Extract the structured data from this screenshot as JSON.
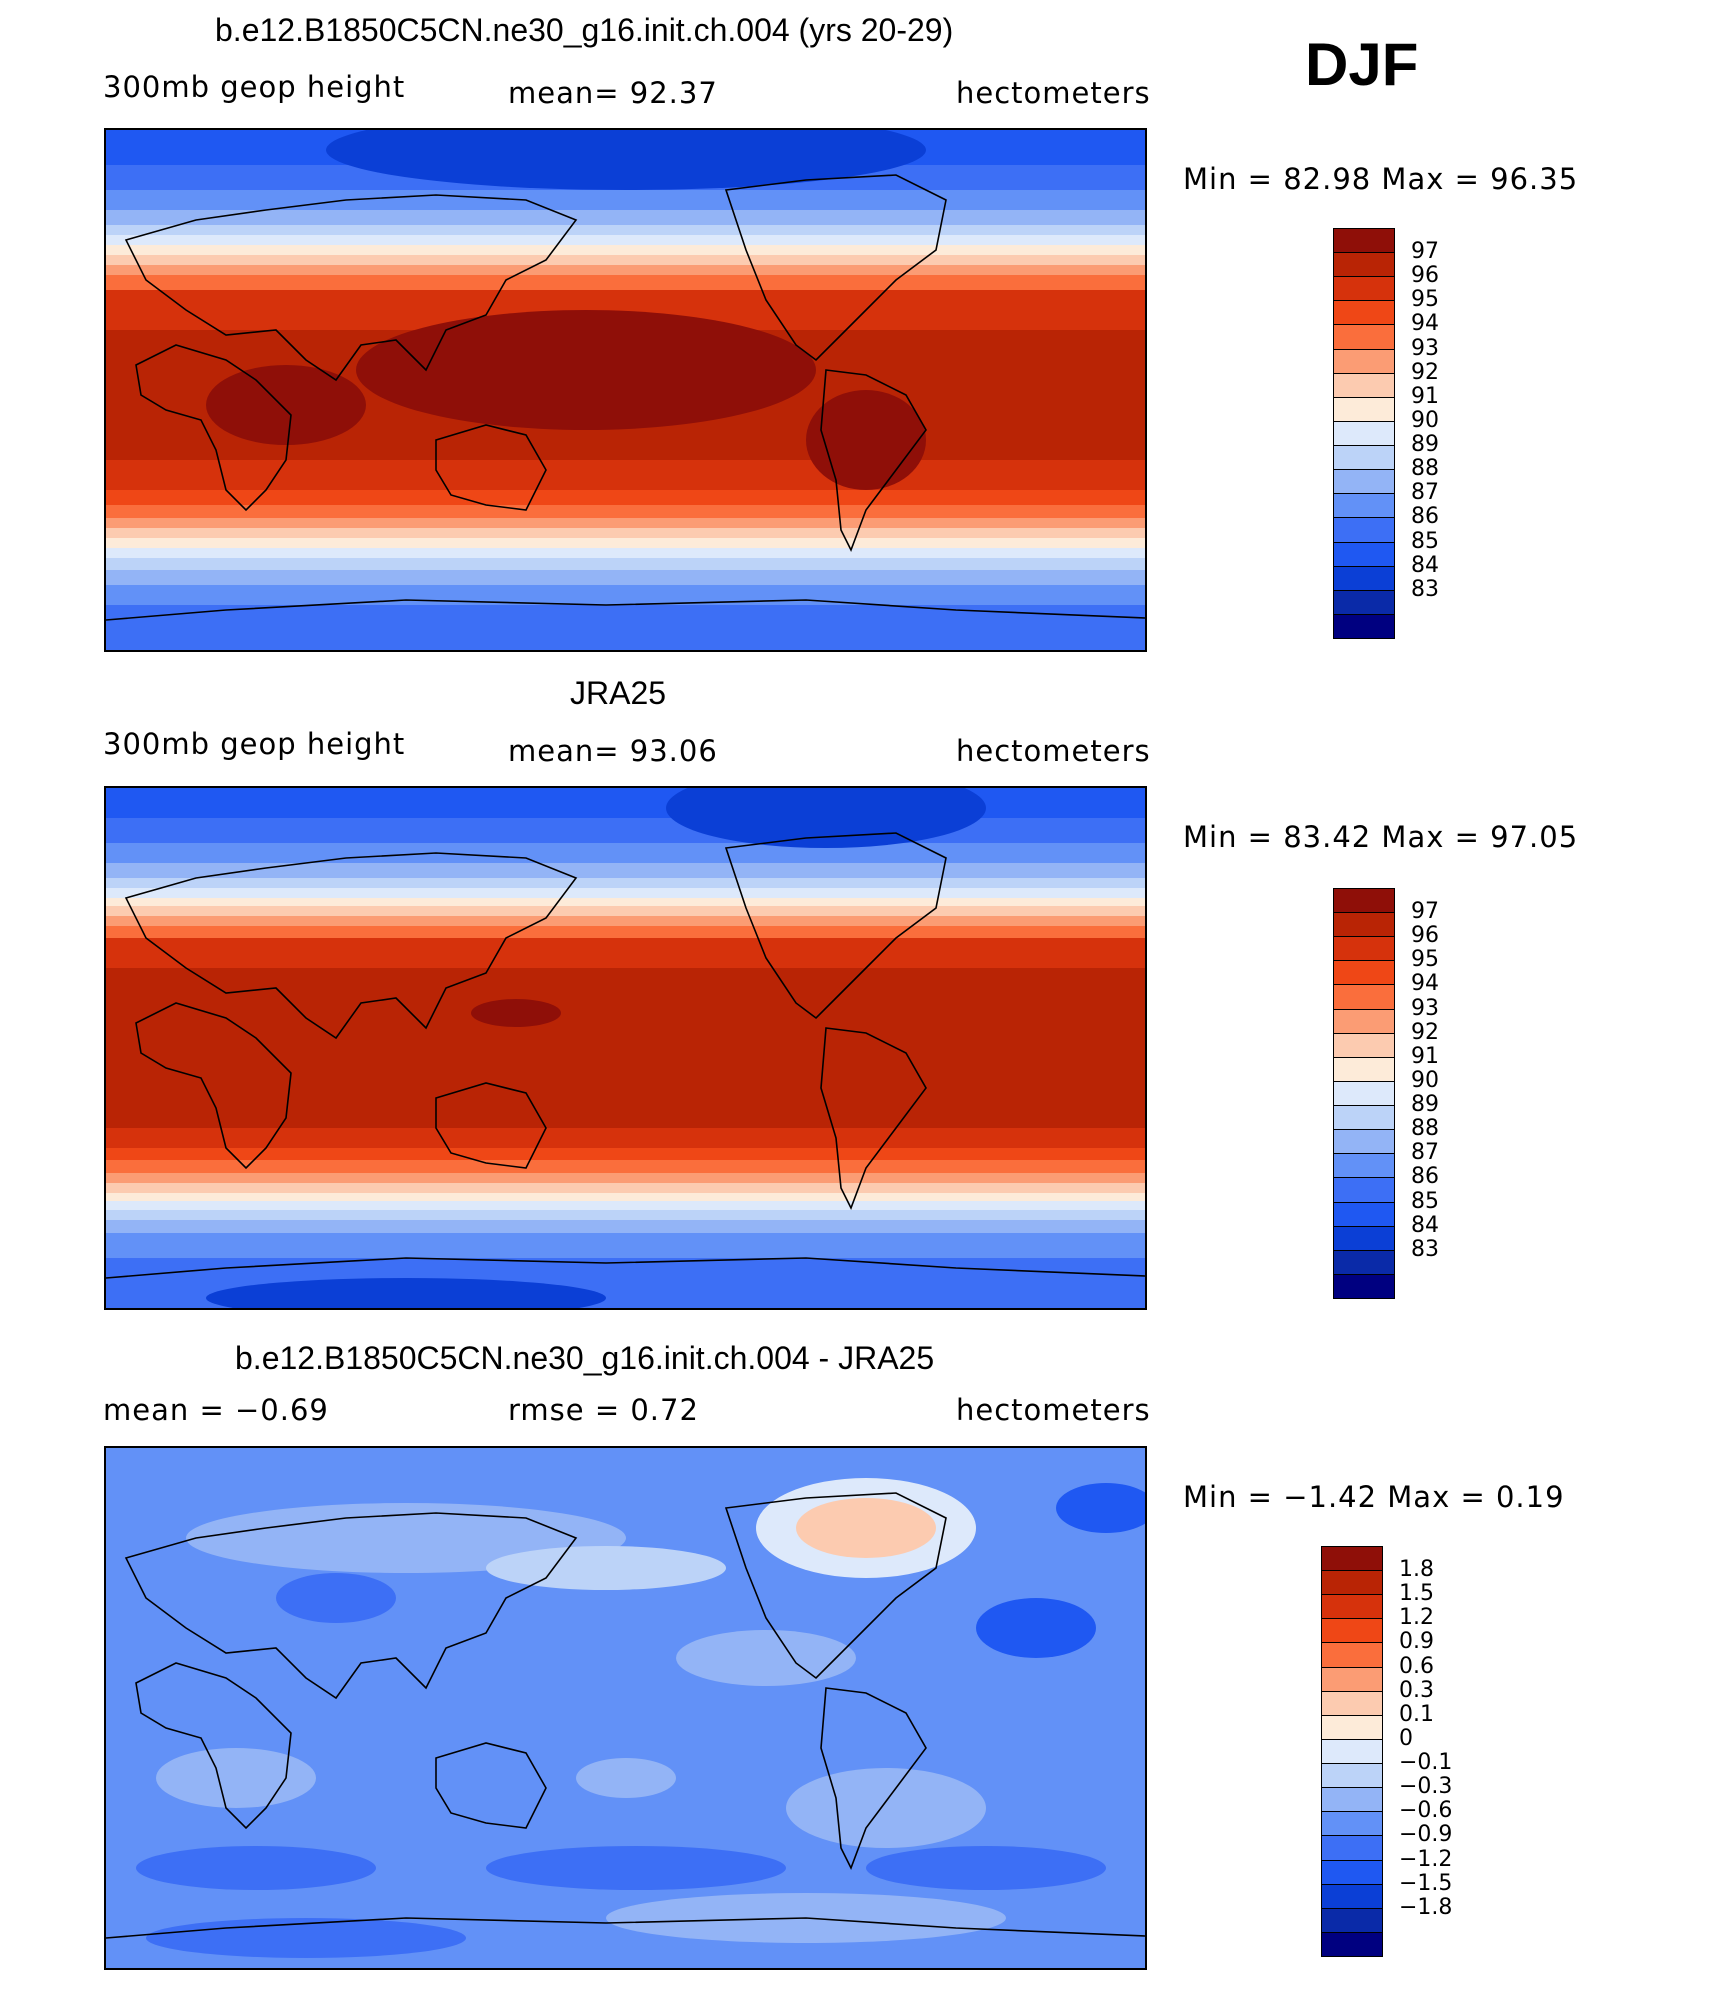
{
  "season": "DJF",
  "colors": {
    "levels_red": [
      "#000080",
      "#0a2aa8",
      "#0b3fd6",
      "#1f58f2",
      "#3d6ff5",
      "#6291f7",
      "#93b4f6",
      "#bcd3f8",
      "#dde9fb",
      "#fdebd9",
      "#fccbb0",
      "#fb9c74",
      "#fa6e3c",
      "#ef4716",
      "#d6320c",
      "#b92405",
      "#8f0f08"
    ],
    "diff": [
      "#000080",
      "#0a2aa8",
      "#0b3fd6",
      "#1f58f2",
      "#3d6ff5",
      "#6291f7",
      "#93b4f6",
      "#bcd3f8",
      "#dde9fb",
      "#fdebd9",
      "#fccbb0",
      "#fb9c74",
      "#fa6e3c",
      "#ef4716",
      "#d6320c",
      "#b92405",
      "#8f0f08"
    ]
  },
  "panels": [
    {
      "title": "b.e12.B1850C5CN.ne30_g16.init.ch.004 (yrs 20-29)",
      "left_text": "300mb geop height",
      "center_text": "mean=  92.37",
      "right_text": "hectometers",
      "minmax": "Min =   82.98 Max =   96.35",
      "colorbar_labels": [
        "97",
        "96",
        "95",
        "94",
        "93",
        "92",
        "91",
        "90",
        "89",
        "88",
        "87",
        "86",
        "85",
        "84",
        "83"
      ],
      "kind": "model"
    },
    {
      "title": "JRA25",
      "left_text": "300mb geop height",
      "center_text": "mean=  93.06",
      "right_text": "hectometers",
      "minmax": "Min =   83.42 Max =   97.05",
      "colorbar_labels": [
        "97",
        "96",
        "95",
        "94",
        "93",
        "92",
        "91",
        "90",
        "89",
        "88",
        "87",
        "86",
        "85",
        "84",
        "83"
      ],
      "kind": "obs"
    },
    {
      "title": "b.e12.B1850C5CN.ne30_g16.init.ch.004 - JRA25",
      "left_text": "mean =   −0.69",
      "center_text": "rmse =   0.72",
      "right_text": "hectometers",
      "minmax": "Min =  −1.42 Max =    0.19",
      "colorbar_labels": [
        "1.8",
        "1.5",
        "1.2",
        "0.9",
        "0.6",
        "0.3",
        "0.1",
        "0",
        "−0.1",
        "−0.3",
        "−0.6",
        "−0.9",
        "−1.2",
        "−1.5",
        "−1.8"
      ],
      "kind": "diff"
    }
  ]
}
